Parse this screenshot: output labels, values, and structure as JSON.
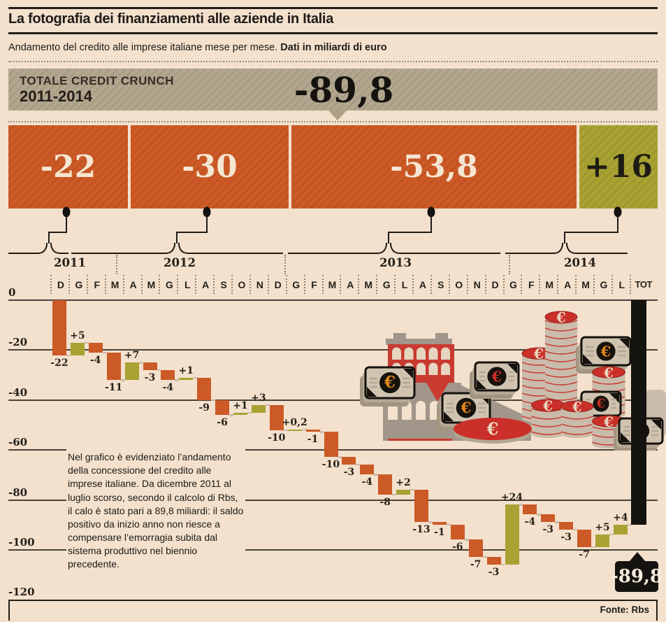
{
  "header": {
    "title": "La fotografia dei finanziamenti alle aziende in Italia",
    "subtitle": "Andamento del credito alle imprese italiane mese per mese. ",
    "subtitle_bold": "Dati in miliardi di euro"
  },
  "banner": {
    "line1": "TOTALE CREDIT CRUNCH",
    "line2": "2011-2014",
    "value": "-89,8"
  },
  "year_totals": [
    {
      "year": "2011",
      "value": "-22",
      "sign": "negative"
    },
    {
      "year": "2012",
      "value": "-30",
      "sign": "negative"
    },
    {
      "year": "2013",
      "value": "-53,8",
      "sign": "negative"
    },
    {
      "year": "2014",
      "value": "+16",
      "sign": "positive"
    }
  ],
  "chart_data": {
    "type": "bar",
    "subtype": "waterfall",
    "title": "Andamento del credito alle imprese italiane mese per mese",
    "unit": "miliardi di euro",
    "ylim": [
      -120,
      0
    ],
    "grid": true,
    "yticks": [
      0,
      -20,
      -40,
      -60,
      -80,
      -100,
      -120
    ],
    "ytick_labels": [
      "0",
      "-20",
      "-40",
      "-60",
      "-80",
      "-100",
      "-120"
    ],
    "colors": {
      "negative": "#cb5a27",
      "positive": "#a8a233",
      "total": "#151310"
    },
    "years": [
      {
        "label": "2011",
        "total": "-22",
        "months": [
          {
            "m": "D",
            "v": -22,
            "d": "-22"
          }
        ]
      },
      {
        "label": "2012",
        "total": "-30",
        "months": [
          {
            "m": "G",
            "v": 5,
            "d": "+5"
          },
          {
            "m": "F",
            "v": -4,
            "d": "-4"
          },
          {
            "m": "M",
            "v": -11,
            "d": "-11"
          },
          {
            "m": "A",
            "v": 7,
            "d": "+7"
          },
          {
            "m": "M",
            "v": -3,
            "d": "-3"
          },
          {
            "m": "G",
            "v": -4,
            "d": "-4"
          },
          {
            "m": "L",
            "v": 1,
            "d": "+1"
          },
          {
            "m": "A",
            "v": -9,
            "d": "-9"
          },
          {
            "m": "S",
            "v": -6,
            "d": "-6"
          },
          {
            "m": "O",
            "v": 1,
            "d": "+1"
          },
          {
            "m": "N",
            "v": 3,
            "d": "+3"
          },
          {
            "m": "D",
            "v": -10,
            "d": "-10"
          }
        ]
      },
      {
        "label": "2013",
        "total": "-53,8",
        "months": [
          {
            "m": "G",
            "v": 0.2,
            "d": "+0,2"
          },
          {
            "m": "F",
            "v": -1,
            "d": "-1"
          },
          {
            "m": "M",
            "v": -10,
            "d": "-10"
          },
          {
            "m": "A",
            "v": -3,
            "d": "-3"
          },
          {
            "m": "M",
            "v": -4,
            "d": "-4"
          },
          {
            "m": "G",
            "v": -8,
            "d": "-8"
          },
          {
            "m": "L",
            "v": 2,
            "d": "+2"
          },
          {
            "m": "A",
            "v": -13,
            "d": "-13"
          },
          {
            "m": "S",
            "v": -1,
            "d": "-1"
          },
          {
            "m": "O",
            "v": -6,
            "d": "-6"
          },
          {
            "m": "N",
            "v": -7,
            "d": "-7"
          },
          {
            "m": "D",
            "v": -3,
            "d": "-3"
          }
        ]
      },
      {
        "label": "2014",
        "total": "+16",
        "months": [
          {
            "m": "G",
            "v": 24,
            "d": "+24"
          },
          {
            "m": "F",
            "v": -4,
            "d": "-4"
          },
          {
            "m": "M",
            "v": -3,
            "d": "-3"
          },
          {
            "m": "A",
            "v": -3,
            "d": "-3"
          },
          {
            "m": "M",
            "v": -7,
            "d": "-7"
          },
          {
            "m": "G",
            "v": 5,
            "d": "+5"
          },
          {
            "m": "L",
            "v": 4,
            "d": "+4"
          }
        ]
      }
    ],
    "total": {
      "label": "TOT",
      "v": -89.8,
      "d": "-89,8"
    }
  },
  "note": {
    "text": "Nel grafico è evidenziato l’andamento della concessione del credito alle imprese italiane. Da dicembre 2011 al luglio scorso, secondo il calcolo di Rbs, il calo è stato pari a 89,8 miliardi: il saldo positivo da inizio anno non riesce a compensare l’emorragia subita dal sistema produttivo nel biennio precedente."
  },
  "footer": {
    "source": "Fonte: Rbs"
  },
  "illustration": {
    "euro": "€",
    "items": [
      "factory",
      "euro-banknote",
      "euro-coin-stack",
      "euro-coin"
    ],
    "palette": {
      "red": "#cb2f29",
      "taupe": "#c9bcaa",
      "black": "#16120e",
      "orange": "#e2891b"
    }
  }
}
